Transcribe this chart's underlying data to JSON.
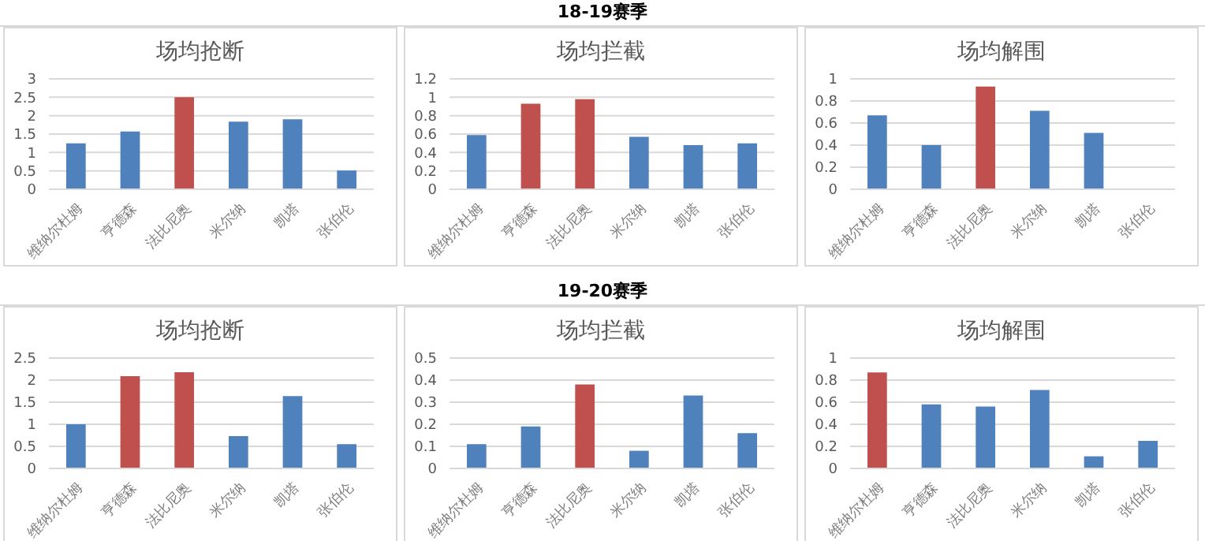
{
  "chart_data": [
    {
      "type": "bar",
      "title": "场均抢断",
      "categories": [
        "维纳尔杜姆",
        "亨德森",
        "法比尼奥",
        "米尔纳",
        "凯塔",
        "张伯伦"
      ],
      "values": [
        1.25,
        1.57,
        2.5,
        1.84,
        1.9,
        0.51
      ],
      "colors": [
        "#4f81bd",
        "#4f81bd",
        "#c0504d",
        "#4f81bd",
        "#4f81bd",
        "#4f81bd"
      ],
      "ylim": [
        0,
        3
      ],
      "yticks": [
        0,
        0.5,
        1,
        1.5,
        2,
        2.5,
        3
      ],
      "grid": "y"
    },
    {
      "type": "bar",
      "title": "场均拦截",
      "subtitle": "18-19赛季",
      "categories": [
        "维纳尔杜姆",
        "亨德森",
        "法比尼奥",
        "米尔纳",
        "凯塔",
        "张伯伦"
      ],
      "values": [
        0.59,
        0.93,
        0.98,
        0.57,
        0.48,
        0.5
      ],
      "colors": [
        "#4f81bd",
        "#c0504d",
        "#c0504d",
        "#4f81bd",
        "#4f81bd",
        "#4f81bd"
      ],
      "ylim": [
        0,
        1.2
      ],
      "yticks": [
        0,
        0.2,
        0.4,
        0.6,
        0.8,
        1,
        1.2
      ],
      "grid": "y"
    },
    {
      "type": "bar",
      "title": "场均解围",
      "categories": [
        "维纳尔杜姆",
        "亨德森",
        "法比尼奥",
        "米尔纳",
        "凯塔",
        "张伯伦"
      ],
      "values": [
        0.67,
        0.4,
        0.93,
        0.71,
        0.51,
        0
      ],
      "colors": [
        "#4f81bd",
        "#4f81bd",
        "#c0504d",
        "#4f81bd",
        "#4f81bd",
        "#4f81bd"
      ],
      "ylim": [
        0,
        1
      ],
      "yticks": [
        0,
        0.2,
        0.4,
        0.6,
        0.8,
        1
      ],
      "grid": "y"
    },
    {
      "type": "bar",
      "title": "场均抢断",
      "categories": [
        "维纳尔杜姆",
        "亨德森",
        "法比尼奥",
        "米尔纳",
        "凯塔",
        "张伯伦"
      ],
      "values": [
        1.0,
        2.09,
        2.18,
        0.73,
        1.64,
        0.55
      ],
      "colors": [
        "#4f81bd",
        "#c0504d",
        "#c0504d",
        "#4f81bd",
        "#4f81bd",
        "#4f81bd"
      ],
      "ylim": [
        0,
        2.5
      ],
      "yticks": [
        0,
        0.5,
        1,
        1.5,
        2,
        2.5
      ],
      "grid": "y"
    },
    {
      "type": "bar",
      "title": "场均拦截",
      "subtitle": "19-20赛季",
      "categories": [
        "维纳尔杜姆",
        "亨德森",
        "法比尼奥",
        "米尔纳",
        "凯塔",
        "张伯伦"
      ],
      "values": [
        0.11,
        0.19,
        0.38,
        0.08,
        0.33,
        0.16
      ],
      "colors": [
        "#4f81bd",
        "#4f81bd",
        "#c0504d",
        "#4f81bd",
        "#4f81bd",
        "#4f81bd"
      ],
      "ylim": [
        0,
        0.5
      ],
      "yticks": [
        0,
        0.1,
        0.2,
        0.3,
        0.4,
        0.5
      ],
      "grid": "y"
    },
    {
      "type": "bar",
      "title": "场均解围",
      "categories": [
        "维纳尔杜姆",
        "亨德森",
        "法比尼奥",
        "米尔纳",
        "凯塔",
        "张伯伦"
      ],
      "values": [
        0.87,
        0.58,
        0.56,
        0.71,
        0.11,
        0.25
      ],
      "colors": [
        "#c0504d",
        "#4f81bd",
        "#4f81bd",
        "#4f81bd",
        "#4f81bd",
        "#4f81bd"
      ],
      "ylim": [
        0,
        1
      ],
      "yticks": [
        0,
        0.2,
        0.4,
        0.6,
        0.8,
        1
      ],
      "grid": "y"
    }
  ]
}
